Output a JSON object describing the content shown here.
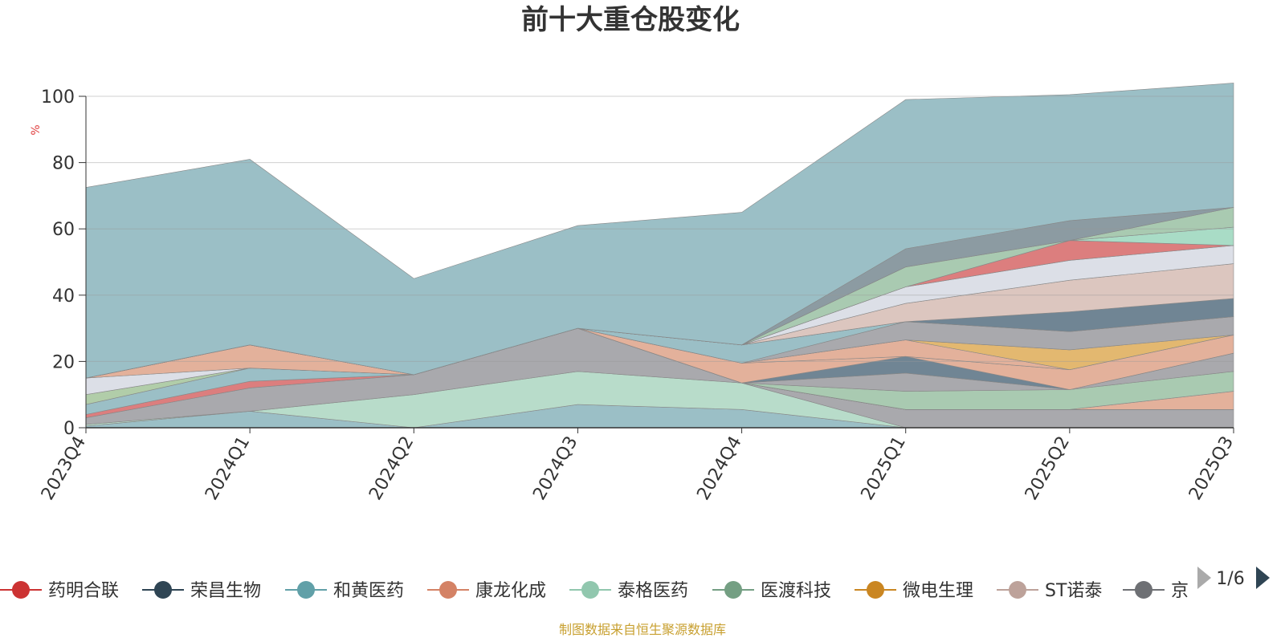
{
  "chart_data": {
    "type": "area",
    "title": "前十大重仓股变化",
    "unit": "%",
    "ylim": [
      0,
      100
    ],
    "yticks": [
      0,
      20,
      40,
      60,
      80,
      100
    ],
    "categories": [
      "2023Q4",
      "2024Q1",
      "2024Q2",
      "2024Q3",
      "2024Q4",
      "2025Q1",
      "2025Q2",
      "2025Q3"
    ],
    "stacked": true,
    "legend_placement": "bottom",
    "series": [
      {
        "color": "#90b8c0",
        "values": [
          0.5,
          5,
          0,
          7,
          5.5,
          0,
          0,
          0
        ]
      },
      {
        "color": "#b0d8c4",
        "values": [
          0.5,
          0,
          10,
          10,
          8,
          0,
          0,
          0
        ]
      },
      {
        "color": "#a0a0a4",
        "values": [
          2,
          7,
          6,
          13,
          0,
          5.5,
          5.5,
          5.5
        ]
      },
      {
        "color": "#d87070",
        "values": [
          1,
          2,
          0,
          0,
          0,
          0,
          0,
          0
        ]
      },
      {
        "color": "#90b8c0",
        "values": [
          3,
          4,
          0,
          0,
          0,
          0,
          0,
          0
        ]
      },
      {
        "color": "#a8c8a0",
        "values": [
          3,
          0,
          0,
          0,
          0,
          0,
          0,
          0
        ]
      },
      {
        "color": "#d8dce4",
        "values": [
          5,
          0,
          0,
          0,
          0,
          0,
          0,
          0
        ]
      },
      {
        "color": "#e0a890",
        "values": [
          0,
          7,
          0,
          0,
          0,
          0,
          0,
          0
        ]
      },
      {
        "color": "#e0a890",
        "values": [
          0,
          0,
          0,
          0,
          0,
          0,
          0,
          5.5
        ]
      },
      {
        "color": "#a0c4a8",
        "values": [
          0,
          0,
          0,
          0,
          0,
          5.5,
          6,
          6
        ]
      },
      {
        "color": "#a0a0a4",
        "values": [
          0,
          0,
          0,
          0,
          0,
          5.5,
          0,
          5.5
        ]
      },
      {
        "color": "#607888",
        "values": [
          0,
          0,
          0,
          0,
          0,
          5,
          0,
          0
        ]
      },
      {
        "color": "#e0a890",
        "values": [
          0,
          0,
          0,
          0,
          6,
          0,
          6,
          5.5
        ]
      },
      {
        "color": "#e0a890",
        "values": [
          0,
          0,
          0,
          0,
          0,
          5,
          0,
          0
        ]
      },
      {
        "color": "#e0b060",
        "values": [
          0,
          0,
          0,
          0,
          0,
          0,
          6,
          0
        ]
      },
      {
        "color": "#a0a0a4",
        "values": [
          0,
          0,
          0,
          0,
          0,
          5.5,
          5.5,
          5.5
        ]
      },
      {
        "color": "#90b8c0",
        "values": [
          0,
          0,
          0,
          0,
          5.5,
          0,
          0,
          0
        ]
      },
      {
        "color": "#607888",
        "values": [
          0,
          0,
          0,
          0,
          0,
          0,
          6,
          5.5
        ]
      },
      {
        "color": "#d8c0b8",
        "values": [
          0,
          0,
          0,
          0,
          0,
          5.5,
          9.5,
          10.5
        ]
      },
      {
        "color": "#d8dce4",
        "values": [
          0,
          0,
          0,
          0,
          0,
          5,
          6,
          5.5
        ]
      },
      {
        "color": "#d87070",
        "values": [
          0,
          0,
          0,
          0,
          0,
          0,
          6,
          0
        ]
      },
      {
        "color": "#a0d8c0",
        "values": [
          0,
          0,
          0,
          0,
          0,
          0,
          0,
          5.5
        ]
      },
      {
        "color": "#a0c4a8",
        "values": [
          0,
          0,
          0,
          0,
          0,
          6,
          0,
          6
        ]
      },
      {
        "color": "#809098",
        "values": [
          0,
          0,
          0,
          0,
          0,
          5.5,
          6,
          0
        ]
      },
      {
        "color": "#90b8c0",
        "values": [
          57.5,
          56,
          29,
          31,
          40,
          45,
          38,
          37.5
        ]
      }
    ]
  },
  "legend": {
    "items": [
      {
        "label": "药明合联",
        "color": "#cc3333"
      },
      {
        "label": "荣昌生物",
        "color": "#2f4554"
      },
      {
        "label": "和黄医药",
        "color": "#61a0a8"
      },
      {
        "label": "康龙化成",
        "color": "#d48265"
      },
      {
        "label": "泰格医药",
        "color": "#91c7ae"
      },
      {
        "label": "医渡科技",
        "color": "#749f83"
      },
      {
        "label": "微电生理",
        "color": "#ca8622"
      },
      {
        "label": "ST诺泰",
        "color": "#bda29a"
      },
      {
        "label": "京",
        "color": "#6e7074"
      }
    ],
    "page": "1/6"
  },
  "source": "制图数据来自恒生聚源数据库"
}
